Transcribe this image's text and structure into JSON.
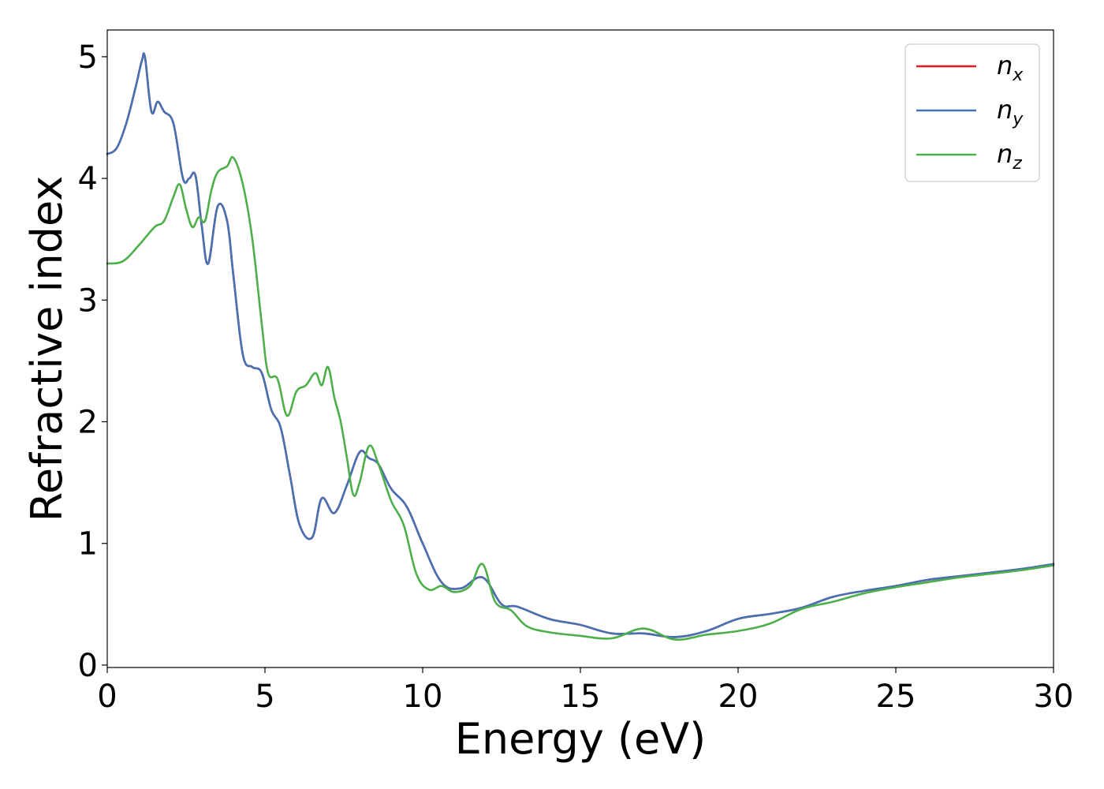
{
  "chart_data": {
    "type": "line",
    "xlabel": "Energy (eV)",
    "ylabel": "Refractive index",
    "xlim": [
      0,
      30
    ],
    "ylim": [
      -0.02,
      5.22
    ],
    "xticks": [
      "0",
      "5",
      "10",
      "15",
      "20",
      "25",
      "30"
    ],
    "yticks": [
      "0",
      "1",
      "2",
      "3",
      "4",
      "5"
    ],
    "grid": false,
    "legend_position": "top-right",
    "series": [
      {
        "name": "n_x",
        "legend_main": "n",
        "legend_sub": "x",
        "color": "#e41a1c",
        "x": [
          0,
          0.3,
          0.6,
          0.9,
          1.1,
          1.2,
          1.4,
          1.6,
          1.8,
          2.1,
          2.4,
          2.6,
          2.8,
          3.0,
          3.2,
          3.5,
          3.8,
          4.0,
          4.3,
          4.6,
          4.9,
          5.2,
          5.5,
          5.8,
          6.1,
          6.5,
          6.8,
          7.2,
          7.6,
          8.0,
          8.3,
          8.6,
          9.0,
          9.5,
          10.0,
          10.6,
          11.2,
          11.9,
          12.5,
          13.0,
          14.0,
          15.0,
          16.0,
          17.0,
          18.0,
          19.0,
          20.0,
          21.0,
          22.0,
          23.0,
          24.0,
          25.0,
          26.0,
          27.0,
          28.0,
          29.0,
          30.0
        ],
        "y": [
          4.2,
          4.25,
          4.45,
          4.75,
          4.97,
          4.99,
          4.55,
          4.63,
          4.55,
          4.45,
          4.0,
          4.0,
          4.02,
          3.6,
          3.3,
          3.77,
          3.65,
          3.2,
          2.55,
          2.45,
          2.4,
          2.1,
          1.95,
          1.55,
          1.15,
          1.05,
          1.37,
          1.25,
          1.48,
          1.75,
          1.7,
          1.65,
          1.45,
          1.3,
          1.0,
          0.68,
          0.63,
          0.72,
          0.5,
          0.48,
          0.38,
          0.33,
          0.26,
          0.26,
          0.23,
          0.28,
          0.38,
          0.42,
          0.47,
          0.56,
          0.61,
          0.65,
          0.7,
          0.73,
          0.76,
          0.79,
          0.83
        ]
      },
      {
        "name": "n_y",
        "legend_main": "n",
        "legend_sub": "y",
        "color": "#4472b4",
        "x": [
          0,
          0.3,
          0.6,
          0.9,
          1.1,
          1.2,
          1.4,
          1.6,
          1.8,
          2.1,
          2.4,
          2.6,
          2.8,
          3.0,
          3.2,
          3.5,
          3.8,
          4.0,
          4.3,
          4.6,
          4.9,
          5.2,
          5.5,
          5.8,
          6.1,
          6.5,
          6.8,
          7.2,
          7.6,
          8.0,
          8.3,
          8.6,
          9.0,
          9.5,
          10.0,
          10.6,
          11.2,
          11.9,
          12.5,
          13.0,
          14.0,
          15.0,
          16.0,
          17.0,
          18.0,
          19.0,
          20.0,
          21.0,
          22.0,
          23.0,
          24.0,
          25.0,
          26.0,
          27.0,
          28.0,
          29.0,
          30.0
        ],
        "y": [
          4.2,
          4.25,
          4.45,
          4.75,
          4.97,
          4.99,
          4.55,
          4.63,
          4.55,
          4.45,
          4.0,
          4.0,
          4.02,
          3.6,
          3.3,
          3.77,
          3.65,
          3.2,
          2.55,
          2.45,
          2.4,
          2.1,
          1.95,
          1.55,
          1.15,
          1.05,
          1.37,
          1.25,
          1.48,
          1.75,
          1.7,
          1.65,
          1.45,
          1.3,
          1.0,
          0.68,
          0.63,
          0.72,
          0.5,
          0.48,
          0.38,
          0.33,
          0.26,
          0.26,
          0.23,
          0.28,
          0.38,
          0.42,
          0.47,
          0.56,
          0.61,
          0.65,
          0.7,
          0.73,
          0.76,
          0.79,
          0.83
        ]
      },
      {
        "name": "n_z",
        "legend_main": "n",
        "legend_sub": "z",
        "color": "#4daf4a",
        "x": [
          0,
          0.5,
          1.0,
          1.5,
          1.8,
          2.1,
          2.3,
          2.5,
          2.7,
          2.9,
          3.1,
          3.3,
          3.5,
          3.8,
          4.0,
          4.3,
          4.6,
          4.9,
          5.1,
          5.4,
          5.7,
          6.0,
          6.3,
          6.6,
          6.8,
          7.0,
          7.2,
          7.4,
          7.6,
          7.8,
          8.0,
          8.3,
          8.6,
          9.0,
          9.4,
          9.8,
          10.2,
          10.6,
          11.0,
          11.5,
          11.9,
          12.3,
          12.8,
          13.3,
          14.0,
          15.0,
          16.0,
          17.0,
          18.0,
          19.0,
          20.0,
          21.0,
          22.0,
          23.0,
          24.0,
          25.0,
          26.0,
          27.0,
          28.0,
          29.0,
          30.0
        ],
        "y": [
          3.3,
          3.32,
          3.45,
          3.6,
          3.65,
          3.85,
          3.95,
          3.75,
          3.6,
          3.68,
          3.65,
          3.9,
          4.05,
          4.1,
          4.17,
          3.95,
          3.5,
          2.8,
          2.4,
          2.35,
          2.05,
          2.25,
          2.3,
          2.4,
          2.3,
          2.45,
          2.2,
          2.0,
          1.7,
          1.4,
          1.5,
          1.8,
          1.65,
          1.35,
          1.15,
          0.75,
          0.62,
          0.65,
          0.6,
          0.65,
          0.83,
          0.52,
          0.45,
          0.32,
          0.27,
          0.24,
          0.22,
          0.3,
          0.21,
          0.25,
          0.28,
          0.34,
          0.46,
          0.52,
          0.59,
          0.64,
          0.68,
          0.72,
          0.75,
          0.78,
          0.82
        ]
      }
    ]
  }
}
